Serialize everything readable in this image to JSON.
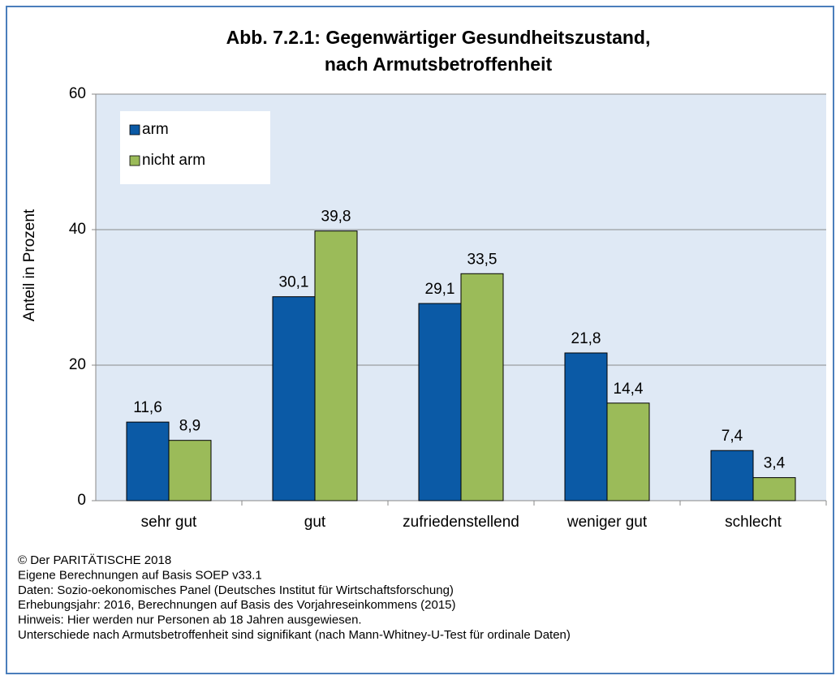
{
  "chart_data": {
    "type": "bar",
    "title": [
      "Abb. 7.2.1: Gegenwärtiger Gesundheitszustand,",
      "nach Armutsbetroffenheit"
    ],
    "y_label": "Anteil in Prozent",
    "categories": [
      "sehr gut",
      "gut",
      "zufriedenstellend",
      "weniger gut",
      "schlecht"
    ],
    "series": [
      {
        "name": "arm",
        "color": "#0b5aa6",
        "values": [
          11.6,
          30.1,
          29.1,
          21.8,
          7.4
        ],
        "value_labels": [
          "11,6",
          "30,1",
          "29,1",
          "21,8",
          "7,4"
        ]
      },
      {
        "name": "nicht arm",
        "color": "#9bbb59",
        "values": [
          8.9,
          39.8,
          33.5,
          14.4,
          3.4
        ],
        "value_labels": [
          "8,9",
          "39,8",
          "33,5",
          "14,4",
          "3,4"
        ]
      }
    ],
    "ylim": [
      0,
      60
    ],
    "yticks": [
      0,
      20,
      40,
      60
    ],
    "grid": true,
    "legend": "upper left",
    "notes": [
      "© Der PARITÄTISCHE 2018",
      "Eigene Berechnungen auf Basis SOEP v33.1",
      "Daten: Sozio-oekonomisches Panel (Deutsches Institut für Wirtschaftsforschung)",
      "Erhebungsjahr: 2016, Berechnungen auf Basis des Vorjahreseinkommens (2015)",
      "Hinweis: Hier werden nur Personen ab 18 Jahren ausgewiesen.",
      "Unterschiede nach Armutsbetroffenheit sind signifikant (nach Mann-Whitney-U-Test für ordinale Daten)"
    ]
  }
}
